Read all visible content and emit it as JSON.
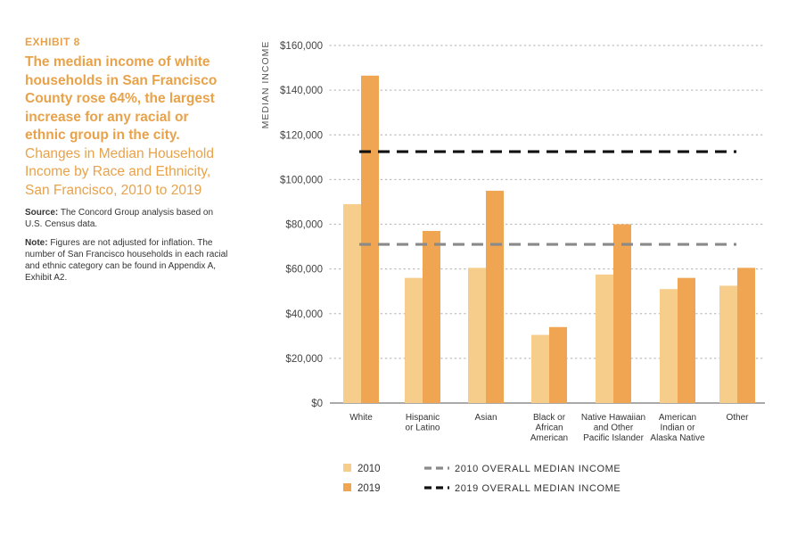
{
  "sidebar": {
    "exhibit": "EXHIBIT 8",
    "headline": "The median income of white households in San Francisco County rose 64%, the largest increase for any racial or ethnic group in the city.",
    "subtitle": "Changes in Median Household Income by Race and Ethnicity, San Francisco, 2010 to 2019",
    "source_label": "Source:",
    "source_text": "The Concord Group analysis based on U.S. Census data.",
    "note_label": "Note:",
    "note_text": "Figures are not adjusted for inflation. The number of San Francisco households in each racial and ethnic category can be found in Appendix A, Exhibit A2."
  },
  "colors": {
    "bar_2010": "#F7CD8C",
    "bar_2019": "#EFA552",
    "median_2010": "#8A8A8A",
    "median_2019": "#111111",
    "grid": "#BBBBBB"
  },
  "chart_data": {
    "type": "bar",
    "ylabel": "MEDIAN INCOME",
    "ylim": [
      0,
      160000
    ],
    "yticks": [
      0,
      20000,
      40000,
      60000,
      80000,
      100000,
      120000,
      140000,
      160000
    ],
    "ytick_labels": [
      "$0",
      "$20,000",
      "$40,000",
      "$60,000",
      "$80,000",
      "$100,000",
      "$120,000",
      "$140,000",
      "$160,000"
    ],
    "grid": "horizontal dotted",
    "categories": [
      [
        "White"
      ],
      [
        "Hispanic",
        "or Latino"
      ],
      [
        "Asian"
      ],
      [
        "Black or",
        "African",
        "American"
      ],
      [
        "Native Hawaiian",
        "and Other",
        "Pacific Islander"
      ],
      [
        "American",
        "Indian or",
        "Alaska Native"
      ],
      [
        "Other"
      ]
    ],
    "series": [
      {
        "name": "2010",
        "values": [
          89000,
          56000,
          60500,
          30500,
          57500,
          51000,
          52500
        ]
      },
      {
        "name": "2019",
        "values": [
          146500,
          77000,
          95000,
          34000,
          80000,
          56000,
          60500
        ]
      }
    ],
    "reference_lines": [
      {
        "name": "2010 OVERALL MEDIAN INCOME",
        "value": 71000
      },
      {
        "name": "2019 OVERALL MEDIAN INCOME",
        "value": 112500
      }
    ],
    "legend_position": "bottom"
  }
}
